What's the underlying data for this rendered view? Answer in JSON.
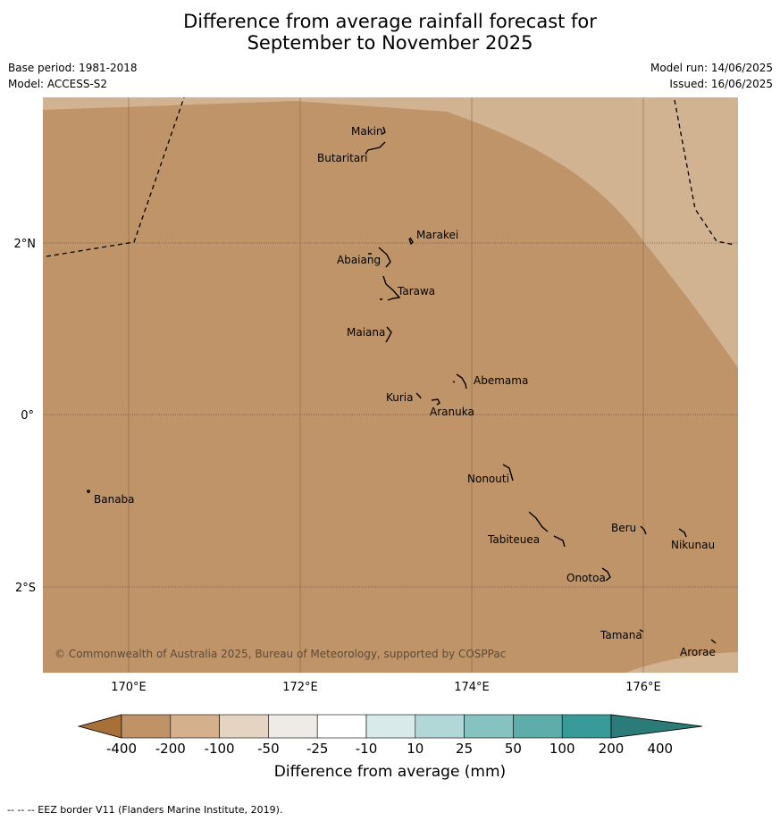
{
  "title_line1": "Difference from average rainfall forecast for",
  "title_line2": "September to November 2025",
  "meta_left": {
    "base_period": "Base period: 1981-2018",
    "model": "Model: ACCESS-S2"
  },
  "meta_right": {
    "model_run": "Model run: 14/06/2025",
    "issued": "Issued: 16/06/2025"
  },
  "map": {
    "lon_ticks": [
      "170°E",
      "172°E",
      "174°E",
      "176°E"
    ],
    "lat_ticks": [
      "2°N",
      "0°",
      "2°S"
    ],
    "places": {
      "makin": "Makin",
      "butaritari": "Butaritari",
      "marakei": "Marakei",
      "abaiang": "Abaiang",
      "tarawa": "Tarawa",
      "maiana": "Maiana",
      "abemama": "Abemama",
      "kuria": "Kuria",
      "aranuka": "Aranuka",
      "nonouti": "Nonouti",
      "banaba": "Banaba",
      "beru": "Beru",
      "nikunau": "Nikunau",
      "tabiteuea": "Tabiteuea",
      "onotoa": "Onotoa",
      "tamana": "Tamana",
      "arorae": "Arorae"
    },
    "copyright": "© Commonwealth of Australia 2025, Bureau of Meteorology, supported by COSPPac"
  },
  "colorbar": {
    "title": "Difference from average (mm)",
    "ticks": [
      "-400",
      "-200",
      "-100",
      "-50",
      "-25",
      "-10",
      "10",
      "25",
      "50",
      "100",
      "200",
      "400"
    ],
    "colors": [
      "#a87039",
      "#bf9267",
      "#d4b08d",
      "#e6d4c2",
      "#eeeae6",
      "#ffffff",
      "#d8ebea",
      "#b1d8d6",
      "#86c2c0",
      "#5fadab",
      "#389b99",
      "#2b7b79"
    ]
  },
  "footnote": "--  --  -- EEZ border V11 (Flanders Marine Institute, 2019)."
}
